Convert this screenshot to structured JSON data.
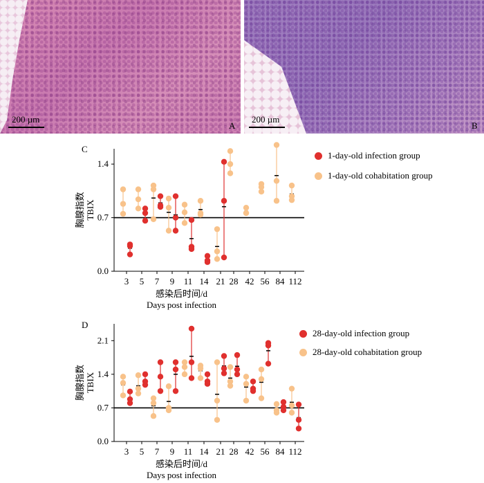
{
  "panels": {
    "A": {
      "label": "A",
      "scale_text": "200 µm"
    },
    "B": {
      "label": "B",
      "scale_text": "200 µm"
    },
    "C": {
      "label": "C"
    },
    "D": {
      "label": "D"
    }
  },
  "colors": {
    "infection": "#e0302e",
    "cohabitation": "#f8c28a",
    "threshold_line": "#000000"
  },
  "chart_data": [
    {
      "type": "scatter",
      "panel": "C",
      "ylabel": [
        "胸腺指数",
        "TBIX"
      ],
      "xlabel": [
        "感染后时间/d",
        "Days post infection"
      ],
      "categories": [
        "3",
        "5",
        "7",
        "9",
        "11",
        "14",
        "21",
        "28",
        "42",
        "56",
        "84",
        "112"
      ],
      "ylim": [
        0.0,
        1.6
      ],
      "yticks": [
        "0.0",
        "0.7",
        "1.4"
      ],
      "reference_line": 0.7,
      "legend_position": "top-right",
      "series": [
        {
          "name": "1-day-old infection group",
          "color": "#e0302e",
          "points": [
            [
              0,
              [
                0.35,
                0.33,
                0.22
              ]
            ],
            [
              1,
              [
                0.82,
                0.76,
                0.66
              ]
            ],
            [
              2,
              [
                0.98,
                0.86,
                0.84
              ]
            ],
            [
              3,
              [
                0.98,
                0.7,
                0.53
              ]
            ],
            [
              4,
              [
                0.67,
                0.32,
                0.29
              ]
            ],
            [
              5,
              [
                0.2,
                0.14,
                0.12
              ]
            ],
            [
              6,
              [
                1.43,
                0.92,
                0.18
              ]
            ]
          ]
        },
        {
          "name": "1-day-old cohabitation group",
          "color": "#f8c28a",
          "points": [
            [
              0,
              [
                1.07,
                0.88,
                0.75
              ]
            ],
            [
              1,
              [
                1.07,
                0.94,
                0.82
              ]
            ],
            [
              2,
              [
                1.12,
                1.07,
                0.68
              ]
            ],
            [
              3,
              [
                0.95,
                0.83,
                0.53
              ]
            ],
            [
              4,
              [
                0.87,
                0.77,
                0.63
              ]
            ],
            [
              5,
              [
                0.92,
                0.76,
                0.74
              ]
            ],
            [
              6,
              [
                0.55,
                0.26,
                0.16
              ]
            ],
            [
              7,
              [
                1.57,
                1.4,
                1.28
              ]
            ],
            [
              8,
              [
                0.83,
                0.76,
                0.76
              ]
            ],
            [
              9,
              [
                1.14,
                1.1,
                1.04
              ]
            ],
            [
              10,
              [
                1.65,
                1.18,
                0.92
              ]
            ],
            [
              11,
              [
                1.12,
                0.98,
                0.93
              ]
            ]
          ]
        }
      ]
    },
    {
      "type": "scatter",
      "panel": "D",
      "ylabel": [
        "胸腺指数",
        "TBIX"
      ],
      "xlabel": [
        "感染后时间/d",
        "Days post infection"
      ],
      "categories": [
        "3",
        "5",
        "7",
        "9",
        "11",
        "14",
        "21",
        "28",
        "42",
        "56",
        "84",
        "112"
      ],
      "ylim": [
        0.0,
        2.45
      ],
      "yticks": [
        "0.0",
        "0.7",
        "1.4",
        "2.1"
      ],
      "reference_line": 0.7,
      "legend_position": "top-right",
      "series": [
        {
          "name": "28-day-old infection group",
          "color": "#e0302e",
          "points": [
            [
              0,
              [
                1.04,
                0.88,
                0.8
              ]
            ],
            [
              1,
              [
                1.4,
                1.25,
                1.18
              ]
            ],
            [
              2,
              [
                1.65,
                1.35,
                1.05
              ]
            ],
            [
              3,
              [
                1.65,
                1.5,
                1.05
              ]
            ],
            [
              4,
              [
                2.35,
                1.65,
                1.32
              ]
            ],
            [
              5,
              [
                1.4,
                1.25,
                1.2
              ]
            ],
            [
              6,
              [
                1.78,
                1.52,
                1.42
              ]
            ],
            [
              7,
              [
                1.8,
                1.5,
                1.4
              ]
            ],
            [
              8,
              [
                1.25,
                1.1,
                1.05
              ]
            ],
            [
              9,
              [
                2.05,
                2.0,
                1.62
              ]
            ],
            [
              10,
              [
                0.82,
                0.72,
                0.65
              ]
            ],
            [
              11,
              [
                0.77,
                0.45,
                0.27
              ]
            ]
          ]
        },
        {
          "name": "28-day-old cohabitation group",
          "color": "#f8c28a",
          "points": [
            [
              0,
              [
                1.35,
                1.22,
                0.96
              ]
            ],
            [
              1,
              [
                1.38,
                1.1,
                1.0
              ]
            ],
            [
              2,
              [
                0.9,
                0.8,
                0.53
              ]
            ],
            [
              3,
              [
                1.15,
                0.7,
                0.65
              ]
            ],
            [
              4,
              [
                1.65,
                1.55,
                1.4
              ]
            ],
            [
              5,
              [
                1.58,
                1.52,
                1.32
              ]
            ],
            [
              6,
              [
                1.65,
                0.85,
                0.45
              ]
            ],
            [
              7,
              [
                1.55,
                1.25,
                1.16
              ]
            ],
            [
              8,
              [
                1.35,
                1.2,
                0.85
              ]
            ],
            [
              9,
              [
                1.5,
                1.3,
                0.9
              ]
            ],
            [
              10,
              [
                0.78,
                0.65,
                0.6
              ]
            ],
            [
              11,
              [
                1.1,
                0.75,
                0.6
              ]
            ]
          ]
        }
      ]
    }
  ]
}
